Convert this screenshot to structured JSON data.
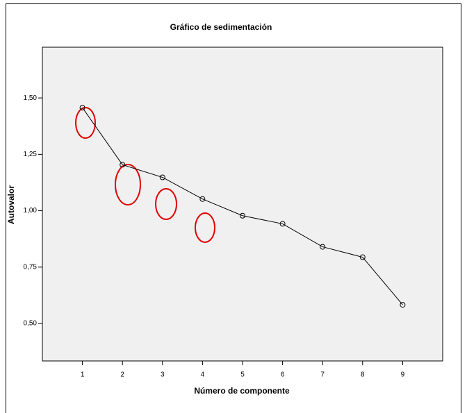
{
  "chart_data": {
    "type": "line",
    "title": "Gráfico de sedimentación",
    "x_label": "Número de componente",
    "y_label": "Autovalor",
    "x": [
      1,
      2,
      3,
      4,
      5,
      6,
      7,
      8,
      9
    ],
    "series": [
      {
        "name": "Autovalor",
        "color": "#000000",
        "values": [
          1.457,
          1.204,
          1.148,
          1.052,
          0.978,
          0.942,
          0.84,
          0.794,
          0.583
        ]
      }
    ],
    "xlim": [
      0,
      10
    ],
    "xticks": [
      1,
      2,
      3,
      4,
      5,
      6,
      7,
      8,
      9
    ],
    "ylim": [
      0.334,
      1.725
    ],
    "yticks": [
      {
        "value": 0.5,
        "label": "0,50"
      },
      {
        "value": 0.75,
        "label": "0,75"
      },
      {
        "value": 1.0,
        "label": "1,00"
      },
      {
        "value": 1.25,
        "label": "1,25"
      },
      {
        "value": 1.5,
        "label": "1,50"
      }
    ]
  }
}
